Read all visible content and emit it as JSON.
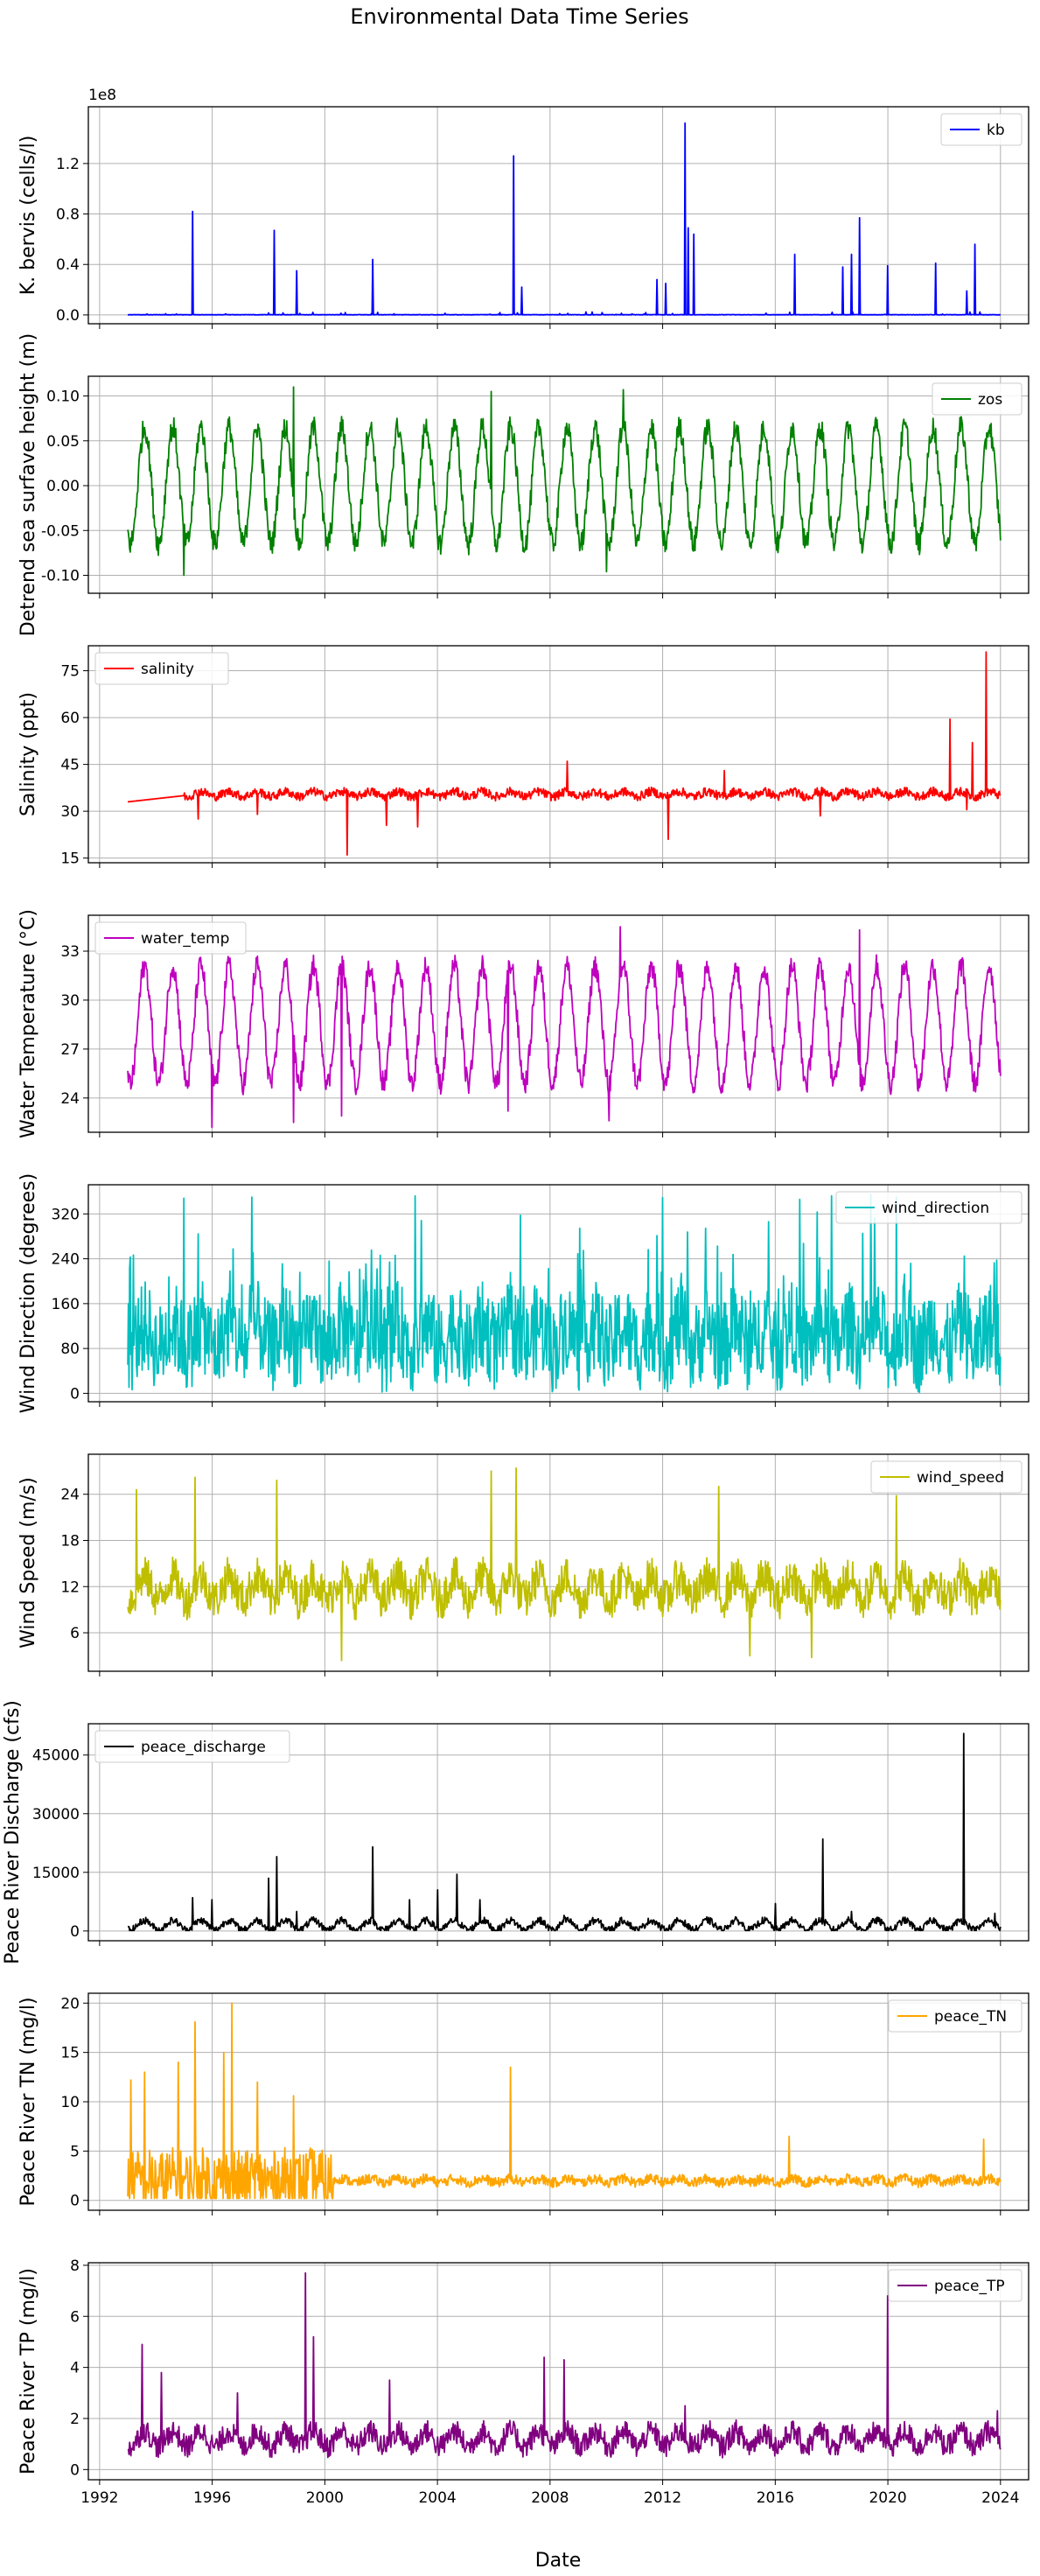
{
  "figure_title": "Environmental Data Time Series",
  "shared_x": {
    "label": "Date",
    "range": [
      1991.6,
      2025.0
    ],
    "ticks": [
      1992,
      1996,
      2000,
      2004,
      2008,
      2012,
      2016,
      2020,
      2024
    ],
    "tick_labels": [
      "1992",
      "1996",
      "2000",
      "2004",
      "2008",
      "2012",
      "2016",
      "2020",
      "2024"
    ],
    "data_start": 1993.0,
    "data_end": 2024.0
  },
  "chart_data": [
    {
      "key": "kb",
      "type": "line",
      "series_name": "kb",
      "color": "#0000ff",
      "ylabel": "K. bervis (cells/l)",
      "ylim": [
        -0.07,
        1.65
      ],
      "multiplier": "1e8",
      "yticks": [
        0.0,
        0.4,
        0.8,
        1.2
      ],
      "ytick_labels": [
        "0.0",
        "0.4",
        "0.8",
        "1.2"
      ],
      "legend_loc": "upper-right",
      "baseline": 0.0,
      "noise": 0.003,
      "seasonal_amp": 0.0,
      "period": 1,
      "spikes": [
        [
          1995.3,
          0.82
        ],
        [
          1998.2,
          0.67
        ],
        [
          1999.0,
          0.35
        ],
        [
          2001.7,
          0.44
        ],
        [
          2006.7,
          1.26
        ],
        [
          2007.0,
          0.22
        ],
        [
          2011.8,
          0.28
        ],
        [
          2012.1,
          0.25
        ],
        [
          2012.8,
          1.52
        ],
        [
          2012.9,
          0.69
        ],
        [
          2013.1,
          0.64
        ],
        [
          2016.7,
          0.48
        ],
        [
          2018.4,
          0.38
        ],
        [
          2018.7,
          0.48
        ],
        [
          2019.0,
          0.77
        ],
        [
          2020.0,
          0.39
        ],
        [
          2021.7,
          0.41
        ],
        [
          2022.8,
          0.19
        ],
        [
          2023.1,
          0.56
        ]
      ]
    },
    {
      "key": "zos",
      "type": "line",
      "series_name": "zos",
      "color": "#008000",
      "ylabel": "Detrend sea surfave height (m)",
      "ylim": [
        -0.12,
        0.122
      ],
      "multiplier": "",
      "yticks": [
        -0.1,
        -0.05,
        0.0,
        0.05,
        0.1
      ],
      "ytick_labels": [
        "-0.10",
        "-0.05",
        "0.00",
        "0.05",
        "0.10"
      ],
      "legend_loc": "upper-right",
      "baseline": 0.0,
      "noise": 0.013,
      "seasonal_amp": 0.065,
      "period": 1,
      "spikes": [
        [
          1995.0,
          -0.1
        ],
        [
          1998.9,
          0.11
        ],
        [
          2005.9,
          0.105
        ],
        [
          2010.0,
          -0.096
        ],
        [
          2010.6,
          0.107
        ]
      ]
    },
    {
      "key": "salinity",
      "type": "line",
      "series_name": "salinity",
      "color": "#ff0000",
      "ylabel": "Salinity (ppt)",
      "ylim": [
        13.5,
        83
      ],
      "multiplier": "",
      "yticks": [
        15,
        30,
        45,
        60,
        75
      ],
      "ytick_labels": [
        "15",
        "30",
        "45",
        "60",
        "75"
      ],
      "legend_loc": "upper-left",
      "baseline": 35.5,
      "noise": 1.4,
      "seasonal_amp": 0.8,
      "period": 1,
      "spikes": [
        [
          1995.5,
          27.5
        ],
        [
          1997.6,
          29.0
        ],
        [
          2000.8,
          16.0
        ],
        [
          2002.2,
          25.5
        ],
        [
          2003.3,
          25.0
        ],
        [
          2008.6,
          46.0
        ],
        [
          2012.2,
          21.0
        ],
        [
          2014.2,
          43.0
        ],
        [
          2017.6,
          28.5
        ],
        [
          2022.2,
          59.5
        ],
        [
          2022.8,
          30.5
        ],
        [
          2023.0,
          52.0
        ],
        [
          2023.5,
          81.0
        ]
      ]
    },
    {
      "key": "water_temp",
      "type": "line",
      "series_name": "water_temp",
      "color": "#bf00bf",
      "ylabel": "Water Temperature (°C)",
      "ylim": [
        21.9,
        35.2
      ],
      "multiplier": "",
      "yticks": [
        24,
        27,
        30,
        33
      ],
      "ytick_labels": [
        "24",
        "27",
        "30",
        "33"
      ],
      "legend_loc": "upper-left",
      "baseline": 28.5,
      "noise": 0.7,
      "seasonal_amp": 3.6,
      "period": 1,
      "spikes": [
        [
          1996.0,
          22.2
        ],
        [
          1998.9,
          22.5
        ],
        [
          2000.6,
          22.9
        ],
        [
          2006.5,
          23.2
        ],
        [
          2010.5,
          34.5
        ],
        [
          2010.1,
          22.6
        ],
        [
          2019.0,
          34.3
        ]
      ]
    },
    {
      "key": "wind_direction",
      "type": "line",
      "series_name": "wind_direction",
      "color": "#00bfbf",
      "ylabel": "Wind Direction (degrees)",
      "ylim": [
        -15,
        372
      ],
      "multiplier": "",
      "yticks": [
        0,
        80,
        160,
        240,
        320
      ],
      "ytick_labels": [
        "0",
        "80",
        "160",
        "240",
        "320"
      ],
      "legend_loc": "upper-right",
      "baseline": 100,
      "noise": 80,
      "seasonal_amp": 20,
      "period": 1,
      "spikes": [
        [
          1995.0,
          348
        ],
        [
          1997.4,
          350
        ],
        [
          2003.2,
          352
        ],
        [
          2012.0,
          349
        ],
        [
          2018.0,
          352
        ],
        [
          2020.3,
          350
        ]
      ]
    },
    {
      "key": "wind_speed",
      "type": "line",
      "series_name": "wind_speed",
      "color": "#bfbf00",
      "ylabel": "Wind Speed (m/s)",
      "ylim": [
        1.0,
        29.2
      ],
      "multiplier": "",
      "yticks": [
        6,
        12,
        18,
        24
      ],
      "ytick_labels": [
        "6",
        "12",
        "18",
        "24"
      ],
      "legend_loc": "upper-right",
      "baseline": 11.8,
      "noise": 2.6,
      "seasonal_amp": 1.5,
      "period": 1,
      "spikes": [
        [
          1993.3,
          24.6
        ],
        [
          1995.4,
          26.2
        ],
        [
          1998.3,
          25.8
        ],
        [
          2000.6,
          2.4
        ],
        [
          2005.9,
          27.0
        ],
        [
          2006.8,
          27.4
        ],
        [
          2014.0,
          25.0
        ],
        [
          2015.1,
          3.0
        ],
        [
          2017.3,
          2.8
        ],
        [
          2020.3,
          23.8
        ]
      ]
    },
    {
      "key": "peace_discharge",
      "type": "line",
      "series_name": "peace_discharge",
      "color": "#000000",
      "ylabel": "Peace River Discharge (cfs)",
      "ylim": [
        -2500,
        53000
      ],
      "multiplier": "",
      "yticks": [
        0,
        15000,
        30000,
        45000
      ],
      "ytick_labels": [
        "0",
        "15000",
        "30000",
        "45000"
      ],
      "legend_loc": "upper-left",
      "baseline": 1500,
      "noise": 900,
      "seasonal_amp": 1200,
      "period": 1,
      "spikes": [
        [
          1995.3,
          8500
        ],
        [
          1996.0,
          8000
        ],
        [
          1998.0,
          13500
        ],
        [
          1998.3,
          19000
        ],
        [
          1999.0,
          5000
        ],
        [
          2001.7,
          21500
        ],
        [
          2003.0,
          8000
        ],
        [
          2004.0,
          10500
        ],
        [
          2004.7,
          14500
        ],
        [
          2005.5,
          8000
        ],
        [
          2008.5,
          4000
        ],
        [
          2016.0,
          7000
        ],
        [
          2017.7,
          23500
        ],
        [
          2018.7,
          5000
        ],
        [
          2022.7,
          50500
        ],
        [
          2023.8,
          4500
        ]
      ]
    },
    {
      "key": "peace_TN",
      "type": "line",
      "series_name": "peace_TN",
      "color": "#ffa500",
      "ylabel": "Peace River TN (mg/l)",
      "ylim": [
        -1.0,
        21.0
      ],
      "multiplier": "",
      "yticks": [
        0,
        5,
        10,
        15,
        20
      ],
      "ytick_labels": [
        "0",
        "5",
        "10",
        "15",
        "20"
      ],
      "legend_loc": "upper-right",
      "baseline": 2.0,
      "noise": 0.5,
      "seasonal_amp": 0.2,
      "period": 1,
      "early_noise": 3.2,
      "early_end": 2000.3,
      "spikes": [
        [
          1993.1,
          12.2
        ],
        [
          1993.6,
          13.0
        ],
        [
          1994.8,
          14.0
        ],
        [
          1995.4,
          18.1
        ],
        [
          1996.4,
          15.0
        ],
        [
          1996.7,
          20.0
        ],
        [
          1997.6,
          12.0
        ],
        [
          1998.9,
          10.6
        ],
        [
          2006.6,
          13.5
        ],
        [
          2016.5,
          6.5
        ],
        [
          2023.4,
          6.2
        ]
      ]
    },
    {
      "key": "peace_TP",
      "type": "line",
      "series_name": "peace_TP",
      "color": "#800080",
      "ylabel": "Peace River TP (mg/l)",
      "ylim": [
        -0.4,
        8.1
      ],
      "multiplier": "",
      "yticks": [
        0,
        2,
        4,
        6,
        8
      ],
      "ytick_labels": [
        "0",
        "2",
        "4",
        "6",
        "8"
      ],
      "legend_loc": "upper-right",
      "baseline": 1.2,
      "noise": 0.45,
      "seasonal_amp": 0.3,
      "period": 1,
      "spikes": [
        [
          1993.5,
          4.9
        ],
        [
          1994.2,
          3.8
        ],
        [
          1996.9,
          3.0
        ],
        [
          1999.3,
          7.7
        ],
        [
          1999.6,
          5.2
        ],
        [
          2002.3,
          3.5
        ],
        [
          2007.8,
          4.4
        ],
        [
          2008.5,
          4.3
        ],
        [
          2012.8,
          2.5
        ],
        [
          2020.0,
          6.8
        ],
        [
          2023.9,
          2.3
        ]
      ]
    }
  ]
}
